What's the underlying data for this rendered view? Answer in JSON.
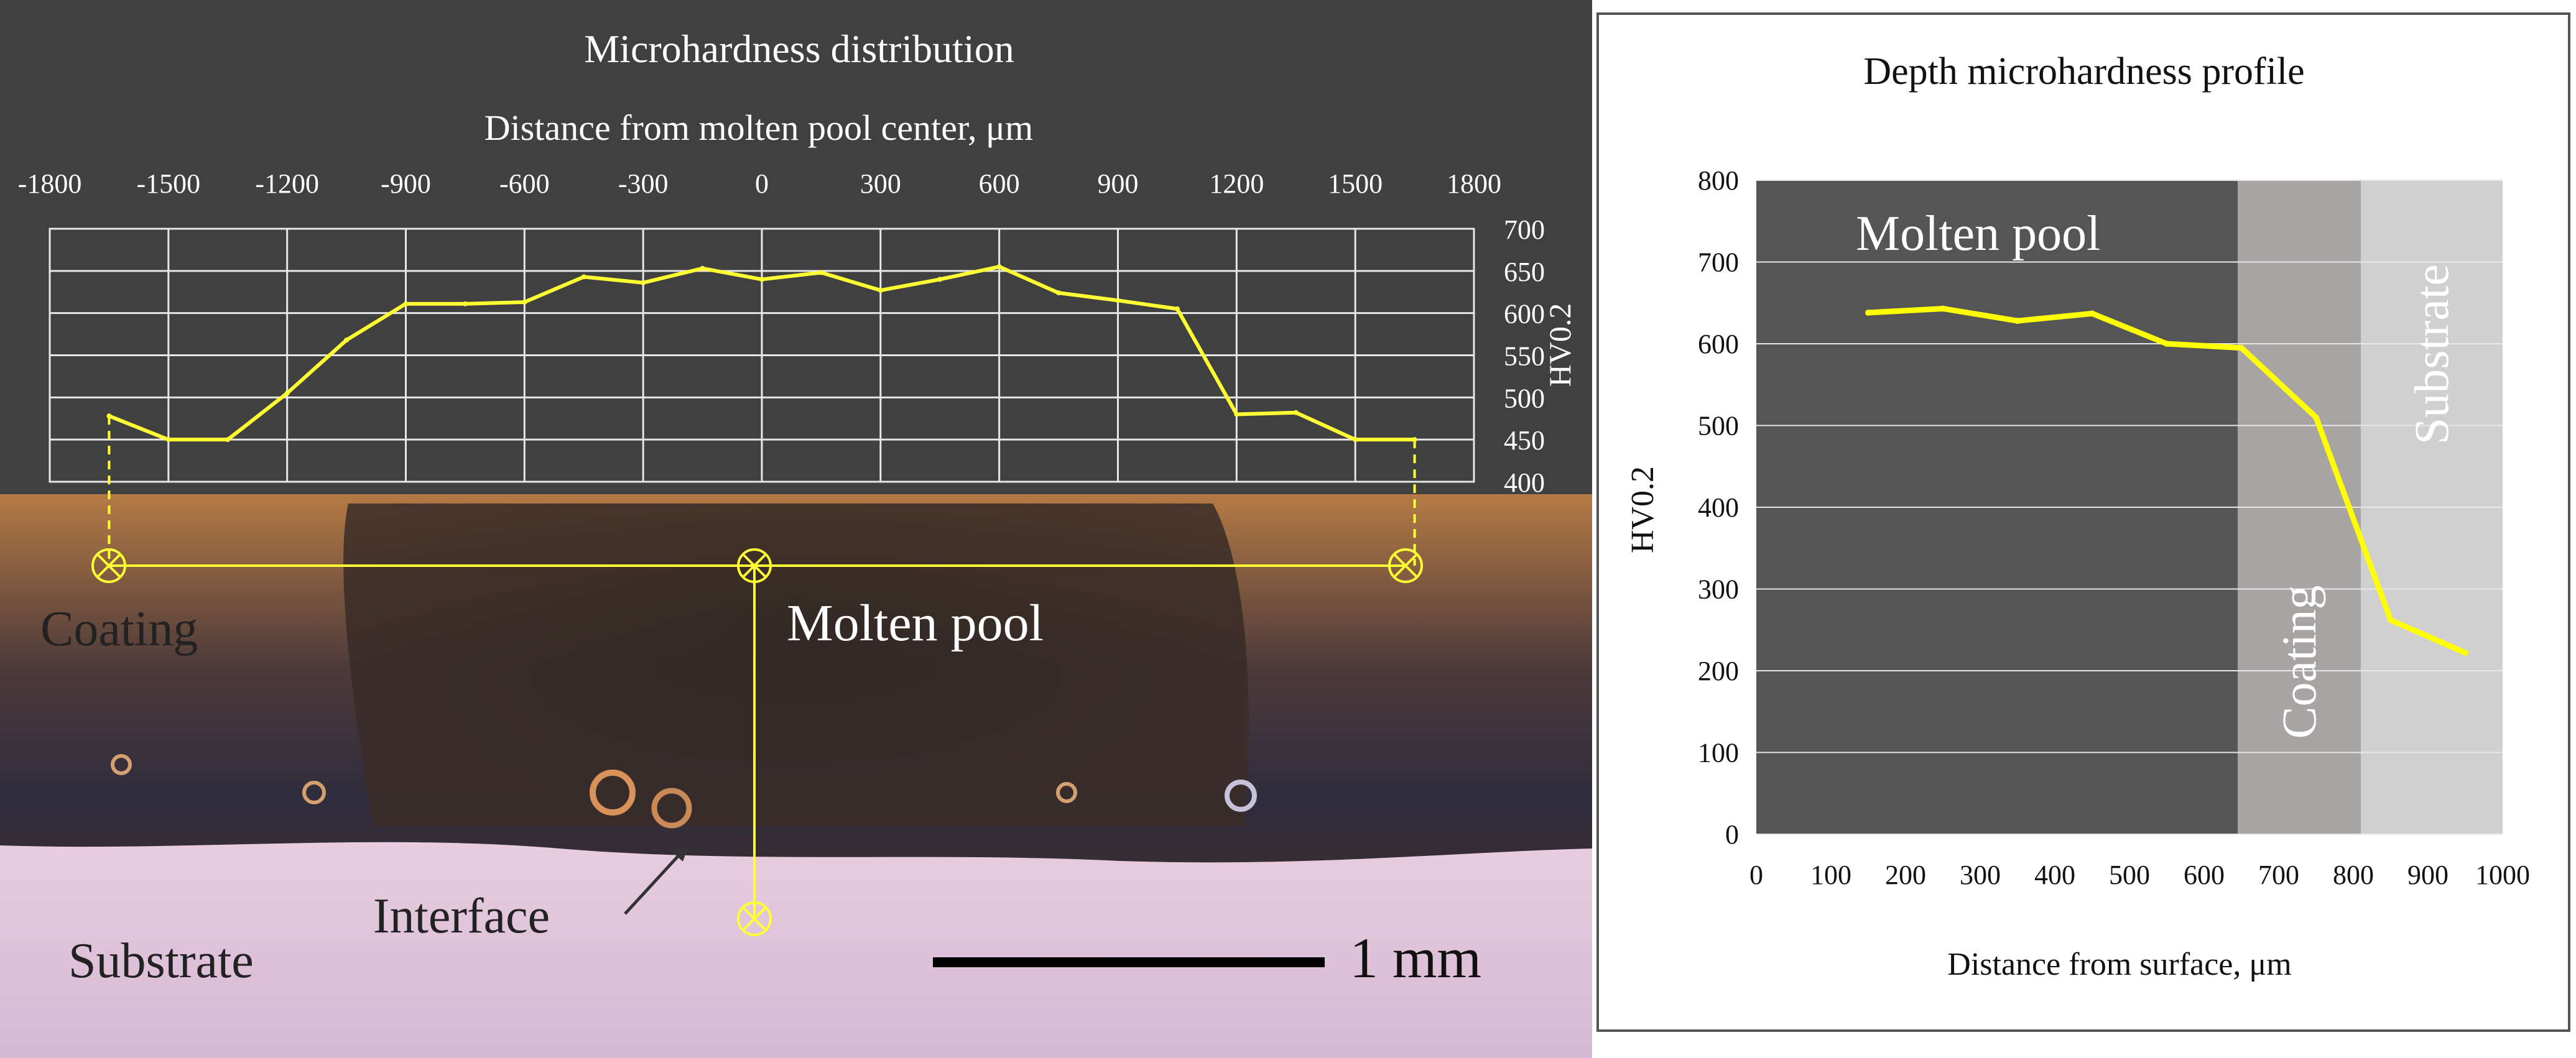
{
  "chart_data": [
    {
      "type": "line",
      "title": "Microhardness distribution",
      "xlabel": "Distance from molten pool center, μm",
      "ylabel": "HV0.2",
      "xlim": [
        -1800,
        1800
      ],
      "ylim": [
        400,
        700
      ],
      "xticks": [
        -1800,
        -1500,
        -1200,
        -900,
        -600,
        -300,
        0,
        300,
        600,
        900,
        1200,
        1500,
        1800
      ],
      "yticks": [
        400,
        450,
        500,
        550,
        600,
        650,
        700
      ],
      "x": [
        -1650,
        -1500,
        -1350,
        -1200,
        -1050,
        -900,
        -750,
        -600,
        -450,
        -300,
        -150,
        0,
        150,
        300,
        450,
        600,
        750,
        900,
        1050,
        1200,
        1350,
        1500,
        1650
      ],
      "values": [
        478,
        450,
        450,
        505,
        568,
        611,
        611,
        613,
        643,
        636,
        653,
        640,
        648,
        627,
        640,
        655,
        624,
        615,
        605,
        480,
        482,
        450,
        450
      ],
      "color": "#ffff33",
      "grid": true,
      "legend": "none"
    },
    {
      "type": "line",
      "title": "Depth microhardness profile",
      "xlabel": "Distance from surface, μm",
      "ylabel": "HV0.2",
      "xlim": [
        0,
        1000
      ],
      "ylim": [
        0,
        800
      ],
      "xticks": [
        0,
        100,
        200,
        300,
        400,
        500,
        600,
        700,
        800,
        900,
        1000
      ],
      "yticks": [
        0,
        100,
        200,
        300,
        400,
        500,
        600,
        700,
        800
      ],
      "x": [
        150,
        250,
        350,
        450,
        550,
        650,
        750,
        850,
        950
      ],
      "values": [
        638,
        643,
        628,
        637,
        600,
        595,
        510,
        262,
        222
      ],
      "color": "#ffff00",
      "grid": true,
      "legend": "none",
      "regions": [
        {
          "label": "Molten pool",
          "from": 0,
          "to": 645,
          "color": "#555555"
        },
        {
          "label": "Coating",
          "from": 645,
          "to": 810,
          "color": "#a8a4a4"
        },
        {
          "label": "Substrate",
          "from": 810,
          "to": 1000,
          "color": "#d0d0d0"
        }
      ]
    }
  ],
  "micrograph": {
    "labels": {
      "coating": "Coating",
      "molten_pool": "Molten pool",
      "interface": "Interface",
      "substrate": "Substrate",
      "scale_bar": "1 mm"
    }
  }
}
